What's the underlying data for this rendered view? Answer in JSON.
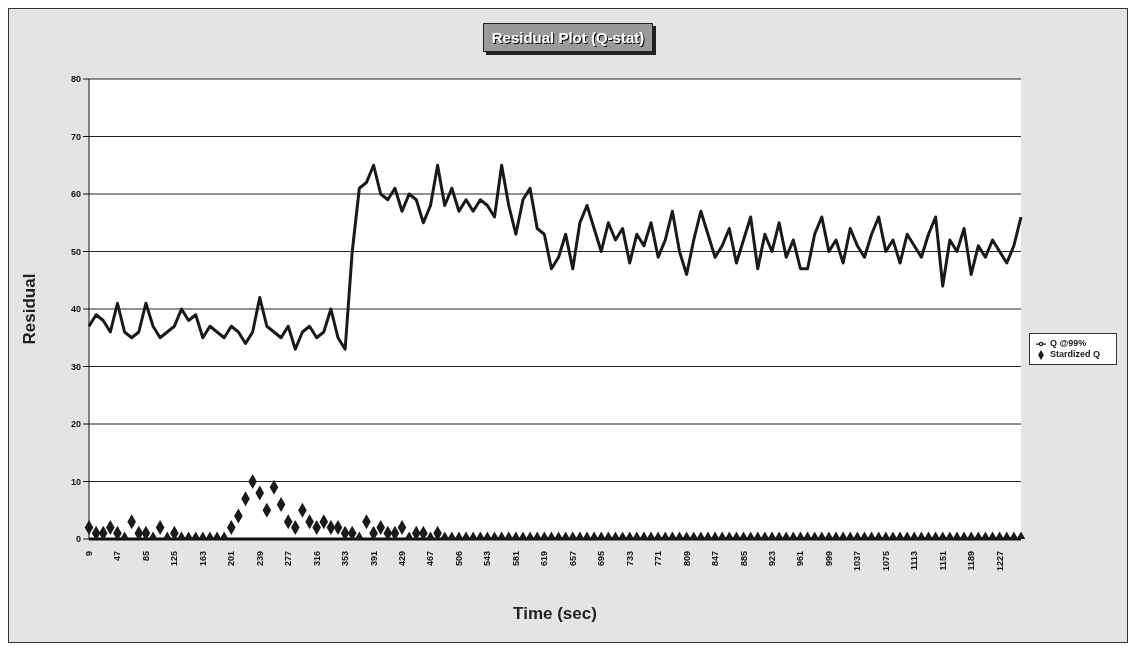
{
  "chart_data": {
    "type": "line",
    "title": "Residual Plot (Q-stat)",
    "xlabel": "Time (sec)",
    "ylabel": "Residual",
    "categories": [
      "9",
      null,
      null,
      null,
      "47",
      null,
      null,
      null,
      "85",
      null,
      null,
      null,
      "125",
      null,
      null,
      null,
      "163",
      null,
      null,
      null,
      "201",
      null,
      null,
      null,
      "239",
      null,
      null,
      null,
      "277",
      null,
      null,
      null,
      "316",
      null,
      null,
      null,
      "353",
      null,
      null,
      null,
      "391",
      null,
      null,
      null,
      "429",
      null,
      null,
      null,
      "467",
      null,
      null,
      null,
      "506",
      null,
      null,
      null,
      "543",
      null,
      null,
      null,
      "581",
      null,
      null,
      null,
      "619",
      null,
      null,
      null,
      "657",
      null,
      null,
      null,
      "695",
      null,
      null,
      null,
      "733",
      null,
      null,
      null,
      "771",
      null,
      null,
      null,
      "809",
      null,
      null,
      null,
      "847",
      null,
      null,
      null,
      "885",
      null,
      null,
      null,
      "923",
      null,
      null,
      null,
      "961",
      null,
      null,
      null,
      "999",
      null,
      null,
      null,
      "1037",
      null,
      null,
      null,
      "1075",
      null,
      null,
      null,
      "1113",
      null,
      null,
      null,
      "1151",
      null,
      null,
      null,
      "1189",
      null,
      null,
      null,
      "1227",
      null,
      null,
      null
    ],
    "series": [
      {
        "name": "Stardized Q",
        "type": "scatter",
        "marker": "diamond",
        "color": "#1a1a1a",
        "values": [
          2,
          1,
          1,
          2,
          1,
          0,
          3,
          1,
          1,
          0,
          2,
          0,
          1,
          0,
          0,
          0,
          0,
          0,
          0,
          0,
          2,
          4,
          7,
          10,
          8,
          5,
          9,
          6,
          3,
          2,
          5,
          3,
          2,
          3,
          2,
          2,
          1,
          1,
          0,
          3,
          1,
          2,
          1,
          1,
          2,
          0,
          1,
          1,
          0,
          1,
          0,
          0,
          0,
          0,
          0,
          0,
          0,
          0,
          0,
          0,
          0,
          0,
          0,
          0,
          0,
          0,
          0,
          0,
          0,
          0,
          0,
          0,
          0,
          0,
          0,
          0,
          0,
          0,
          0,
          0,
          0,
          0,
          0,
          0,
          0,
          0,
          0,
          0,
          0,
          0,
          0,
          0,
          0,
          0,
          0,
          0,
          0,
          0,
          0,
          0,
          0,
          0,
          0,
          0,
          0,
          0,
          0,
          0,
          0,
          0,
          0,
          0,
          0,
          0,
          0,
          0,
          0,
          0,
          0,
          0,
          0,
          0,
          0,
          0,
          0,
          0,
          0,
          0,
          0,
          0,
          0,
          0
        ]
      },
      {
        "name": "Q @99%",
        "type": "line",
        "marker": "none",
        "color": "#1a1a1a",
        "values": [
          37,
          39,
          38,
          36,
          41,
          36,
          35,
          36,
          41,
          37,
          35,
          36,
          37,
          40,
          38,
          39,
          35,
          37,
          36,
          35,
          37,
          36,
          34,
          36,
          42,
          37,
          36,
          35,
          37,
          33,
          36,
          37,
          35,
          36,
          40,
          35,
          33,
          50,
          61,
          62,
          65,
          60,
          59,
          61,
          57,
          60,
          59,
          55,
          58,
          65,
          58,
          61,
          57,
          59,
          57,
          59,
          58,
          56,
          65,
          58,
          53,
          59,
          61,
          54,
          53,
          47,
          49,
          53,
          47,
          55,
          58,
          54,
          50,
          55,
          52,
          54,
          48,
          53,
          51,
          55,
          49,
          52,
          57,
          50,
          46,
          52,
          57,
          53,
          49,
          51,
          54,
          48,
          52,
          56,
          47,
          53,
          50,
          55,
          49,
          52,
          47,
          47,
          53,
          56,
          50,
          52,
          48,
          54,
          51,
          49,
          53,
          56,
          50,
          52,
          48,
          53,
          51,
          49,
          53,
          56,
          44,
          52,
          50,
          54,
          46,
          51,
          49,
          52,
          50,
          48,
          51,
          56
        ]
      }
    ],
    "ylim": [
      0,
      80
    ],
    "yticks": [
      0,
      10,
      20,
      30,
      40,
      50,
      60,
      70,
      80
    ],
    "grid": "y",
    "legend": "right"
  }
}
